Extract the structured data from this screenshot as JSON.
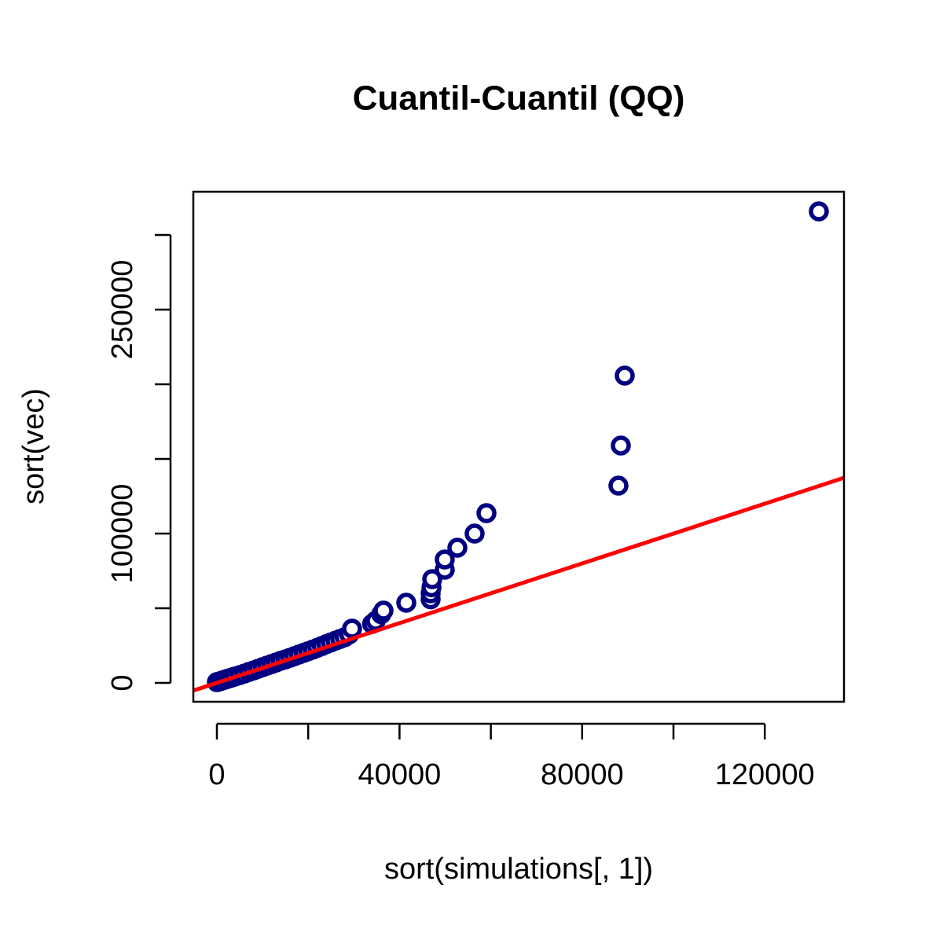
{
  "chart_data": {
    "type": "scatter",
    "title": "Cuantil-Cuantil (QQ)",
    "xlabel": "sort(simulations[, 1])",
    "ylabel": "sort(vec)",
    "xlim": [
      -5163,
      137350
    ],
    "ylim": [
      -12632,
      328947
    ],
    "xticks": [
      0,
      {
        "value": 20000,
        "label": null
      },
      40000,
      {
        "value": 60000,
        "label": null
      },
      80000,
      {
        "value": 100000,
        "label": null
      },
      120000
    ],
    "yticks": [
      0,
      {
        "value": 50000,
        "label": null
      },
      100000,
      {
        "value": 150000,
        "label": null
      },
      {
        "value": 200000,
        "label": null
      },
      250000,
      {
        "value": 300000,
        "label": null
      }
    ],
    "series": [
      {
        "color": "#000080",
        "x": [
          0,
          500,
          1000,
          1500,
          2000,
          2500,
          3000,
          3500,
          4000,
          5000,
          6000,
          7000,
          8000,
          9000,
          10000,
          11000,
          12000,
          13000,
          14000,
          15000,
          16000,
          17000,
          18000,
          19000,
          20000,
          21000,
          22000,
          23000,
          24000,
          25000,
          26000,
          27000,
          28000,
          29000,
          29600,
          34000,
          34770,
          36000,
          36490,
          41480,
          46820,
          46820,
          47000,
          47160,
          49910,
          49910,
          52670,
          56450,
          59040,
          87950,
          88470,
          89330,
          131840
        ],
        "values": [
          500,
          900,
          1400,
          1900,
          2400,
          2900,
          3300,
          3800,
          4300,
          5200,
          6200,
          7300,
          8300,
          9400,
          10500,
          11600,
          12600,
          13700,
          14800,
          15700,
          16800,
          17900,
          19000,
          20100,
          21200,
          22300,
          23500,
          24700,
          26000,
          27100,
          28300,
          29400,
          30600,
          32500,
          36300,
          39500,
          41580,
          46000,
          48420,
          53680,
          56000,
          60000,
          64000,
          69470,
          75790,
          82630,
          90530,
          100000,
          113680,
          132100,
          158950,
          205790,
          315790
        ]
      }
    ],
    "reference_line": {
      "intercept": 0,
      "slope": 1,
      "color": "#ff0000"
    }
  }
}
